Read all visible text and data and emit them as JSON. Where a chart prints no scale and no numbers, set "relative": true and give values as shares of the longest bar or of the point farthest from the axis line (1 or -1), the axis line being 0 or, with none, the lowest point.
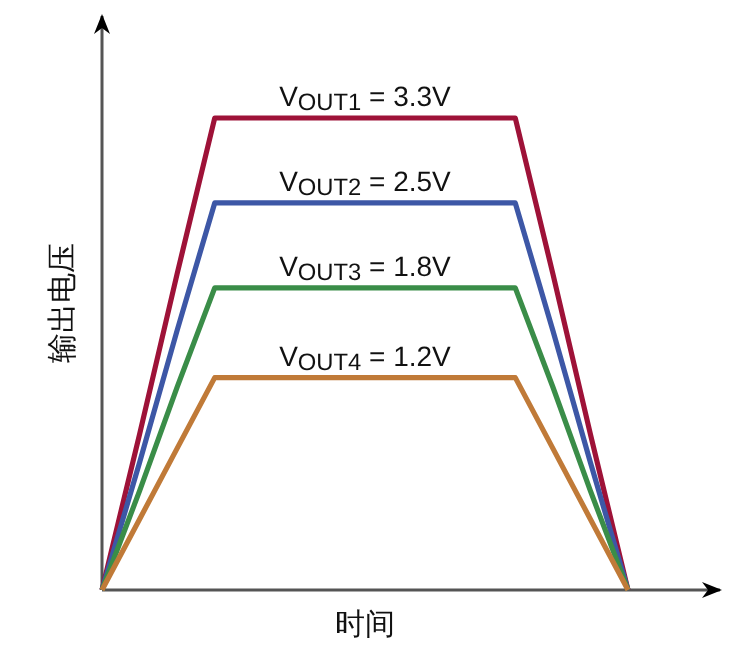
{
  "chart_data": {
    "type": "line",
    "relative": true,
    "xlabel": "时间",
    "ylabel": "输出电压",
    "legend": false,
    "categories": [
      null,
      null,
      null,
      null,
      null,
      null,
      null,
      null,
      null,
      null,
      null,
      null,
      null,
      null,
      null
    ],
    "series": [
      {
        "name": "V$_{OUT1}$ = 3.3V",
        "color": "#9e1238",
        "values": [
          0,
          0.33,
          0.67,
          1,
          1,
          1,
          1,
          1,
          1,
          1,
          1,
          1,
          0.67,
          0.33,
          0
        ]
      },
      {
        "name": "V$_{OUT2}$ = 2.5V",
        "color": "#3d57a6",
        "values": [
          0,
          0.27,
          0.55,
          0.82,
          0.82,
          0.82,
          0.82,
          0.82,
          0.82,
          0.82,
          0.82,
          0.82,
          0.55,
          0.27,
          0
        ]
      },
      {
        "name": "V$_{OUT3}$ = 1.8V",
        "color": "#3a8d48",
        "values": [
          0,
          0.21,
          0.43,
          0.64,
          0.64,
          0.64,
          0.64,
          0.64,
          0.64,
          0.64,
          0.64,
          0.64,
          0.43,
          0.21,
          0
        ]
      },
      {
        "name": "V$_{OUT4}$ = 1.2V",
        "color": "#c07a38",
        "values": [
          0,
          0.15,
          0.3,
          0.45,
          0.45,
          0.45,
          0.45,
          0.45,
          0.45,
          0.45,
          0.45,
          0.45,
          0.3,
          0.15,
          0
        ]
      }
    ]
  }
}
